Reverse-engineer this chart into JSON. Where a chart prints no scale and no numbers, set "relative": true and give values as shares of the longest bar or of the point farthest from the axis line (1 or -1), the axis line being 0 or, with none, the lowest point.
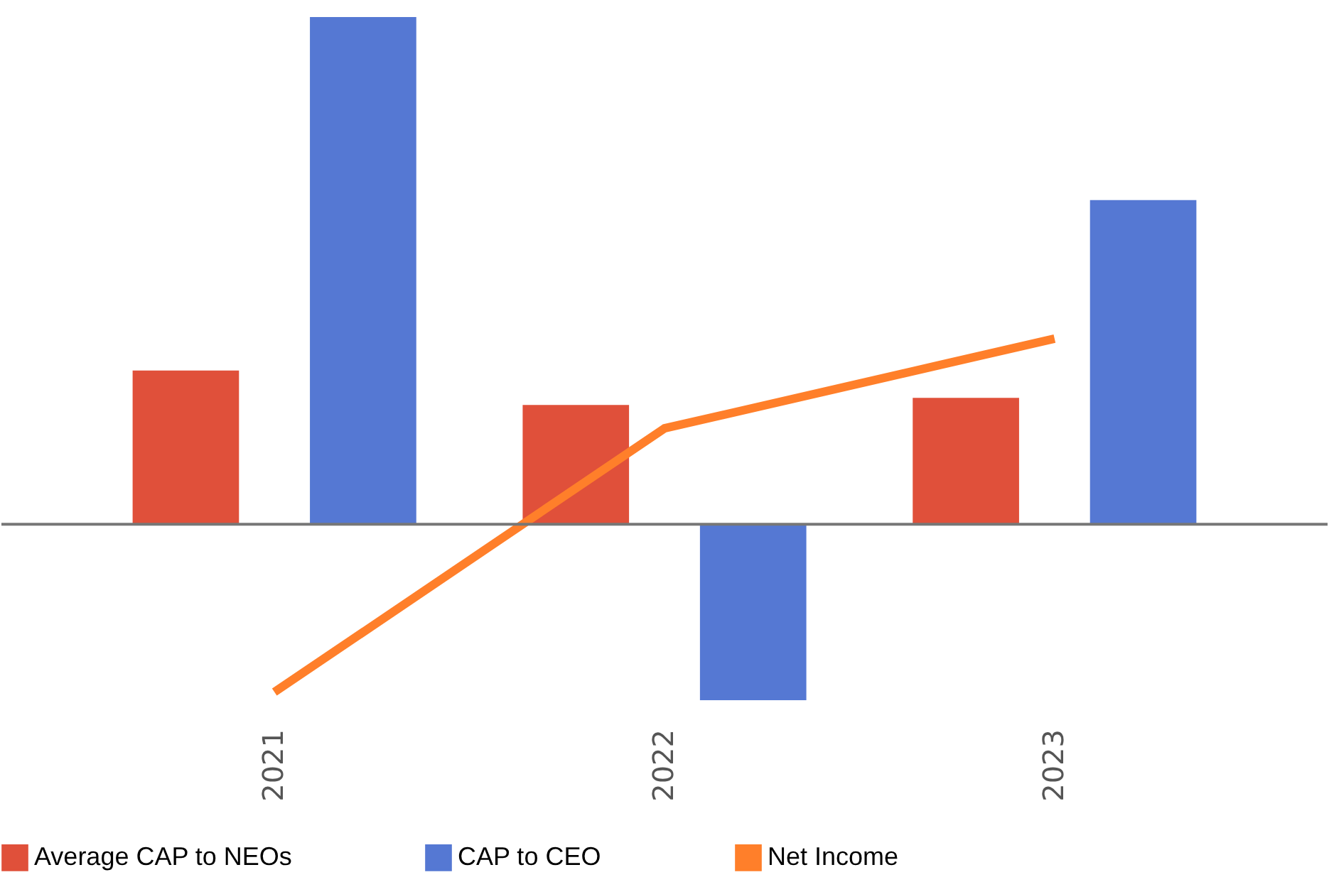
{
  "chart_data": {
    "type": "bar",
    "relative": true,
    "categories": [
      "2021",
      "2022",
      "2023"
    ],
    "legend": "bottom",
    "series": [
      {
        "name": "Average CAP to NEOs",
        "color": "#e0503a",
        "values": [
          0.303,
          0.235,
          0.249
        ]
      },
      {
        "name": "CAP to CEO",
        "color": "#5578d3",
        "values": [
          1,
          -0.347,
          0.639
        ]
      },
      {
        "name": "Net Income",
        "type": "line",
        "color": "#ff7f2a",
        "values": [
          -0.331,
          0.189,
          0.366
        ]
      }
    ]
  }
}
